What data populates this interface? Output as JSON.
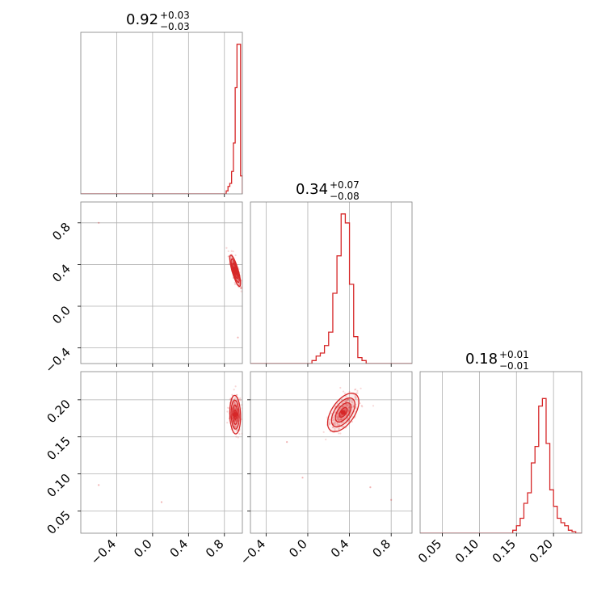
{
  "colors": {
    "series": "#d62728",
    "grid": "#b0b0b0",
    "frame": "#808080"
  },
  "chart_data": {
    "type": "corner",
    "panels": [
      {
        "kind": "histogram",
        "row": 0,
        "col": 0,
        "param_index": 0,
        "title": {
          "median": "0.92",
          "plus": "+0.03",
          "minus": "−0.03"
        },
        "xlim": [
          -0.8,
          1.0
        ],
        "x_ticks": [
          -0.4,
          0.0,
          0.4,
          0.8
        ],
        "bins": [
          0.8,
          0.82,
          0.84,
          0.86,
          0.88,
          0.9,
          0.92,
          0.94,
          0.96,
          0.98,
          1.0
        ],
        "density": [
          0.0,
          0.02,
          0.05,
          0.07,
          0.15,
          0.34,
          0.71,
          1.0,
          1.0,
          0.12
        ]
      },
      {
        "kind": "scatter_contour",
        "row": 1,
        "col": 0,
        "x_param": 0,
        "y_param": 1,
        "xlim": [
          -0.8,
          1.0
        ],
        "ylim": [
          -0.55,
          1.0
        ],
        "x_ticks": [
          -0.4,
          0.0,
          0.4,
          0.8
        ],
        "y_ticks": [
          -0.4,
          0.0,
          0.4,
          0.8
        ],
        "y_tick_labels": [
          "−0.4",
          "0.0",
          "0.4",
          "0.8"
        ],
        "center": [
          0.92,
          0.34
        ],
        "spread": [
          0.03,
          0.075
        ],
        "correlation": -0.8,
        "outliers": [
          [
            -0.6,
            0.8
          ],
          [
            0.95,
            -0.3
          ]
        ],
        "contour_levels": [
          0.5,
          1.0,
          1.5,
          2.0
        ]
      },
      {
        "kind": "scatter_contour",
        "row": 2,
        "col": 0,
        "x_param": 0,
        "y_param": 2,
        "xlim": [
          -0.8,
          1.0
        ],
        "ylim": [
          0.02,
          0.238
        ],
        "x_ticks": [
          -0.4,
          0.0,
          0.4,
          0.8
        ],
        "x_tick_labels": [
          "−0.4",
          "0.0",
          "0.4",
          "0.8"
        ],
        "y_ticks": [
          0.05,
          0.1,
          0.15,
          0.2
        ],
        "y_tick_labels": [
          "0.05",
          "0.10",
          "0.15",
          "0.20"
        ],
        "center": [
          0.92,
          0.18
        ],
        "spread": [
          0.03,
          0.013
        ],
        "correlation": -0.1,
        "outliers": [
          [
            -0.6,
            0.085
          ],
          [
            0.1,
            0.062
          ]
        ],
        "contour_levels": [
          0.5,
          1.0,
          1.5,
          2.0
        ]
      },
      {
        "kind": "histogram",
        "row": 1,
        "col": 1,
        "param_index": 1,
        "title": {
          "median": "0.34",
          "plus": "+0.07",
          "minus": "−0.08"
        },
        "xlim": [
          -0.55,
          1.0
        ],
        "x_ticks": [
          -0.4,
          0.0,
          0.4,
          0.8
        ],
        "bins": [
          0.0,
          0.04,
          0.08,
          0.12,
          0.16,
          0.2,
          0.24,
          0.28,
          0.32,
          0.36,
          0.4,
          0.44,
          0.48,
          0.52,
          0.56,
          0.6
        ],
        "density": [
          0.0,
          0.02,
          0.05,
          0.07,
          0.12,
          0.21,
          0.47,
          0.72,
          1.0,
          0.94,
          0.53,
          0.18,
          0.04,
          0.02,
          0.0
        ]
      },
      {
        "kind": "scatter_contour",
        "row": 2,
        "col": 1,
        "x_param": 1,
        "y_param": 2,
        "xlim": [
          -0.55,
          1.0
        ],
        "ylim": [
          0.02,
          0.238
        ],
        "x_ticks": [
          -0.4,
          0.0,
          0.4,
          0.8
        ],
        "x_tick_labels": [
          "−0.4",
          "0.0",
          "0.4",
          "0.8"
        ],
        "y_ticks": [
          0.05,
          0.1,
          0.15,
          0.2
        ],
        "center": [
          0.34,
          0.183
        ],
        "spread": [
          0.075,
          0.013
        ],
        "correlation": 0.55,
        "outliers": [
          [
            -0.05,
            0.095
          ],
          [
            -0.2,
            0.143
          ],
          [
            0.6,
            0.082
          ],
          [
            0.8,
            0.065
          ]
        ],
        "contour_levels": [
          0.5,
          1.0,
          1.5,
          2.0
        ]
      },
      {
        "kind": "histogram",
        "row": 2,
        "col": 2,
        "param_index": 2,
        "title": {
          "median": "0.18",
          "plus": "+0.01",
          "minus": "−0.01"
        },
        "xlim": [
          0.02,
          0.238
        ],
        "x_ticks": [
          0.05,
          0.1,
          0.15,
          0.2
        ],
        "x_tick_labels": [
          "0.05",
          "0.10",
          "0.15",
          "0.20"
        ],
        "bins": [
          0.14,
          0.145,
          0.15,
          0.155,
          0.16,
          0.165,
          0.17,
          0.175,
          0.18,
          0.185,
          0.19,
          0.195,
          0.2,
          0.205,
          0.21,
          0.215,
          0.22,
          0.225,
          0.23,
          0.235
        ],
        "density": [
          0.0,
          0.02,
          0.05,
          0.1,
          0.2,
          0.27,
          0.47,
          0.58,
          0.85,
          0.9,
          0.6,
          0.29,
          0.18,
          0.1,
          0.07,
          0.05,
          0.02,
          0.01,
          0.0
        ]
      }
    ]
  }
}
